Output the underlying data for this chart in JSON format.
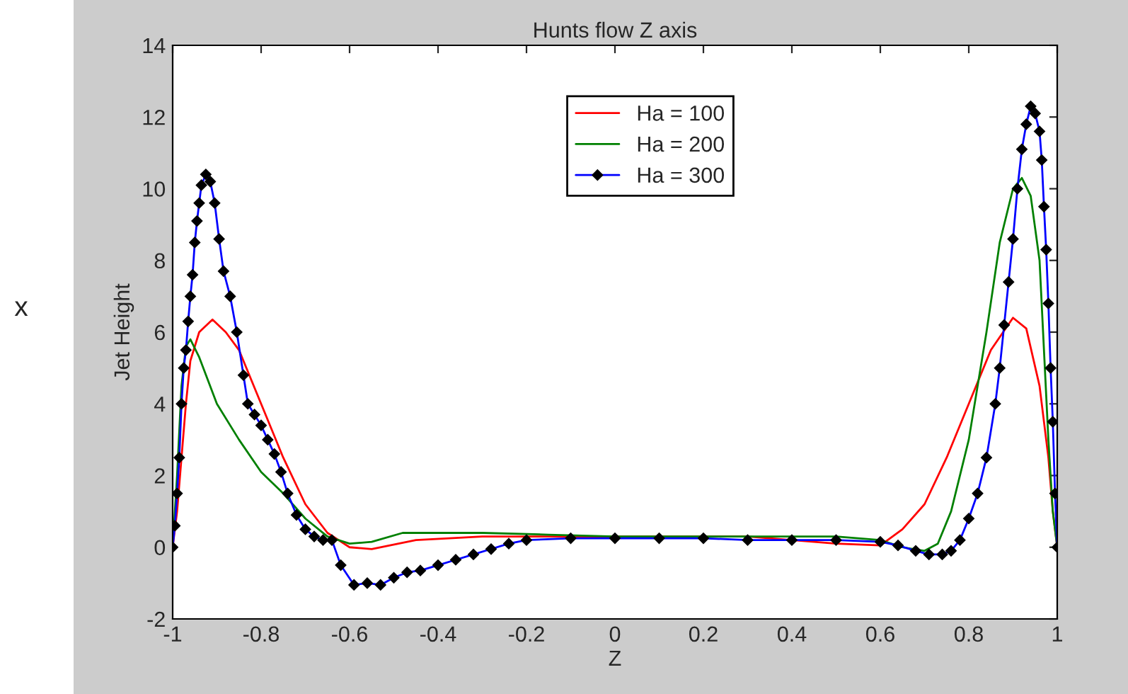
{
  "chart_data": {
    "type": "line",
    "title": "Hunts flow Z axis",
    "xlabel": "Z",
    "ylabel": "Jet Height",
    "annotations": [
      "x"
    ],
    "xlim": [
      -1,
      1
    ],
    "xticks": [
      -1,
      -0.8,
      -0.6,
      -0.4,
      -0.2,
      0,
      0.2,
      0.4,
      0.6,
      0.8,
      1
    ],
    "ylim": [
      -2,
      14
    ],
    "yticks": [
      -2,
      0,
      2,
      4,
      6,
      8,
      10,
      12,
      14
    ],
    "grid": false,
    "legend": "top",
    "series": [
      {
        "name": "Ha = 100",
        "color": "#ff0000",
        "marker": "none",
        "x": [
          -1,
          -0.99,
          -0.98,
          -0.97,
          -0.96,
          -0.94,
          -0.91,
          -0.88,
          -0.85,
          -0.8,
          -0.75,
          -0.7,
          -0.65,
          -0.6,
          -0.55,
          -0.45,
          -0.3,
          -0.1,
          0.1,
          0.3,
          0.5,
          0.6,
          0.65,
          0.7,
          0.75,
          0.8,
          0.85,
          0.9,
          0.93,
          0.96,
          0.98,
          0.99,
          1
        ],
        "values": [
          0,
          1,
          2.5,
          4,
          5.2,
          6,
          6.35,
          6,
          5.5,
          4,
          2.5,
          1.2,
          0.4,
          0,
          -0.05,
          0.2,
          0.3,
          0.3,
          0.3,
          0.3,
          0.1,
          0.05,
          0.5,
          1.2,
          2.5,
          4,
          5.5,
          6.4,
          6.1,
          4.5,
          2.5,
          1,
          0
        ]
      },
      {
        "name": "Ha = 200",
        "color": "#008000",
        "marker": "none",
        "x": [
          -1,
          -0.99,
          -0.98,
          -0.97,
          -0.96,
          -0.94,
          -0.9,
          -0.85,
          -0.8,
          -0.75,
          -0.7,
          -0.65,
          -0.6,
          -0.55,
          -0.48,
          -0.3,
          -0.15,
          0,
          0.2,
          0.4,
          0.5,
          0.6,
          0.65,
          0.7,
          0.73,
          0.76,
          0.8,
          0.84,
          0.87,
          0.9,
          0.92,
          0.94,
          0.96,
          0.97,
          0.98,
          0.99,
          1
        ],
        "values": [
          0,
          2,
          4.5,
          5.6,
          5.8,
          5.3,
          4,
          3,
          2.1,
          1.5,
          0.8,
          0.3,
          0.1,
          0.15,
          0.4,
          0.4,
          0.35,
          0.3,
          0.3,
          0.3,
          0.3,
          0.2,
          0,
          -0.1,
          0.1,
          1,
          3,
          6,
          8.5,
          10,
          10.3,
          9.8,
          8,
          5.5,
          3,
          1,
          0
        ]
      },
      {
        "name": "Ha = 300",
        "color": "#0000ff",
        "marker": "diamond",
        "x": [
          -1,
          -0.995,
          -0.99,
          -0.985,
          -0.98,
          -0.975,
          -0.97,
          -0.965,
          -0.96,
          -0.955,
          -0.95,
          -0.945,
          -0.94,
          -0.935,
          -0.925,
          -0.915,
          -0.905,
          -0.895,
          -0.885,
          -0.87,
          -0.855,
          -0.84,
          -0.83,
          -0.815,
          -0.8,
          -0.785,
          -0.77,
          -0.755,
          -0.74,
          -0.72,
          -0.7,
          -0.68,
          -0.66,
          -0.64,
          -0.62,
          -0.59,
          -0.56,
          -0.53,
          -0.5,
          -0.47,
          -0.44,
          -0.4,
          -0.36,
          -0.32,
          -0.28,
          -0.24,
          -0.2,
          -0.1,
          0,
          0.1,
          0.2,
          0.3,
          0.4,
          0.5,
          0.6,
          0.64,
          0.68,
          0.71,
          0.74,
          0.76,
          0.78,
          0.8,
          0.82,
          0.84,
          0.86,
          0.87,
          0.88,
          0.89,
          0.9,
          0.91,
          0.92,
          0.93,
          0.94,
          0.95,
          0.96,
          0.965,
          0.97,
          0.975,
          0.98,
          0.985,
          0.99,
          0.995,
          1
        ],
        "values": [
          0,
          0.6,
          1.5,
          2.5,
          4,
          5,
          5.5,
          6.3,
          7,
          7.6,
          8.5,
          9.1,
          9.6,
          10.1,
          10.4,
          10.2,
          9.6,
          8.6,
          7.7,
          7,
          6,
          4.8,
          4,
          3.7,
          3.4,
          3,
          2.6,
          2.1,
          1.5,
          0.9,
          0.5,
          0.3,
          0.2,
          0.2,
          -0.5,
          -1.05,
          -1,
          -1.05,
          -0.85,
          -0.7,
          -0.65,
          -0.5,
          -0.35,
          -0.2,
          -0.05,
          0.1,
          0.2,
          0.25,
          0.25,
          0.25,
          0.25,
          0.2,
          0.2,
          0.2,
          0.15,
          0.05,
          -0.1,
          -0.2,
          -0.2,
          -0.1,
          0.2,
          0.8,
          1.5,
          2.5,
          4,
          5,
          6.2,
          7.4,
          8.6,
          10,
          11.1,
          11.8,
          12.3,
          12.1,
          11.6,
          10.8,
          9.5,
          8.3,
          6.8,
          5,
          3.5,
          1.5,
          0
        ]
      }
    ]
  }
}
